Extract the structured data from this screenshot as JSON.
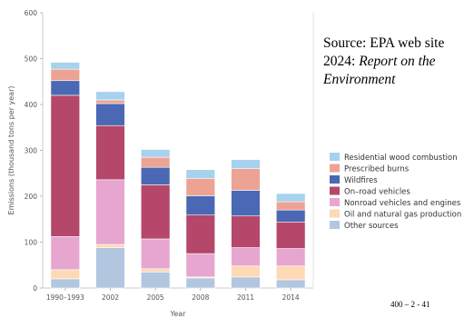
{
  "source_text": {
    "plain": "Source: EPA web site 2024: ",
    "italic": "Report on the Environment"
  },
  "page_number": "400 – 2 - 41",
  "chart_data": {
    "type": "bar",
    "stacked": true,
    "xlabel": "Year",
    "ylabel": "Emissions (thousand tons per year)",
    "ylim": [
      0,
      600
    ],
    "yticks": [
      0,
      100,
      200,
      300,
      400,
      500,
      600
    ],
    "grid": false,
    "legend_position": "right",
    "categories": [
      "1990–1993",
      "2002",
      "2005",
      "2008",
      "2011",
      "2014"
    ],
    "series": [
      {
        "name": "Other sources",
        "color": "#b3c6e0",
        "values": [
          20,
          88,
          35,
          22,
          24,
          18
        ]
      },
      {
        "name": "Oil and natural gas production",
        "color": "#fdd9b5",
        "values": [
          20,
          7,
          7,
          2,
          24,
          30
        ]
      },
      {
        "name": "Nonroad vehicles and engines",
        "color": "#e6a6d0",
        "values": [
          72,
          141,
          65,
          51,
          40,
          38
        ]
      },
      {
        "name": "On–road vehicles",
        "color": "#b4476a",
        "values": [
          308,
          118,
          118,
          84,
          69,
          58
        ]
      },
      {
        "name": "Wildfires",
        "color": "#4a68b3",
        "values": [
          32,
          48,
          38,
          42,
          56,
          26
        ]
      },
      {
        "name": "Prescribed burns",
        "color": "#eda394",
        "values": [
          25,
          8,
          22,
          38,
          47,
          18
        ]
      },
      {
        "name": "Residential wood combustion",
        "color": "#a6d2ee",
        "values": [
          15,
          18,
          17,
          19,
          20,
          18
        ]
      }
    ]
  }
}
